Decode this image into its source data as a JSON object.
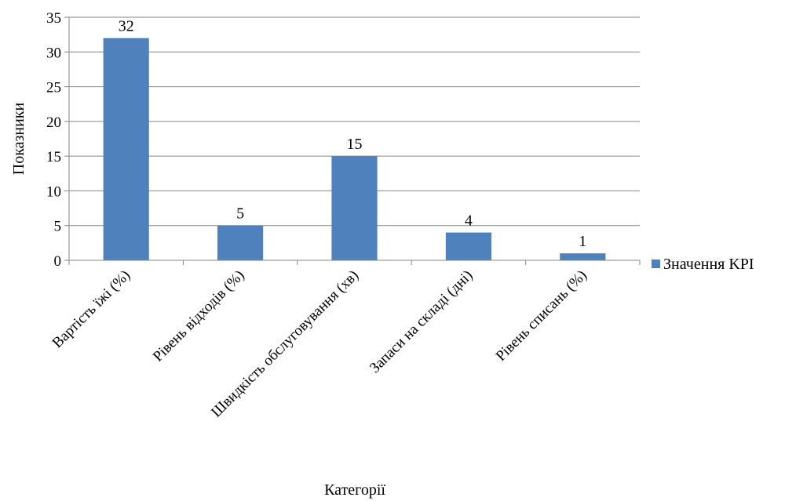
{
  "chart_data": {
    "type": "bar",
    "title": "",
    "xlabel": "Категорії",
    "ylabel": "Показники",
    "categories": [
      "Вартість їжі (%)",
      "Рівень відходів (%)",
      "Швидкість обслуговування (хв)",
      "Запаси на складі (дні)",
      "Рівень списань (%)"
    ],
    "series": [
      {
        "name": "Значення KPI",
        "values": [
          32,
          5,
          15,
          4,
          1
        ]
      }
    ],
    "ylim": [
      0,
      35
    ],
    "yticks": [
      0,
      5,
      10,
      15,
      20,
      25,
      30,
      35
    ],
    "grid": true,
    "legend": "right",
    "color": "#4F81BD"
  }
}
